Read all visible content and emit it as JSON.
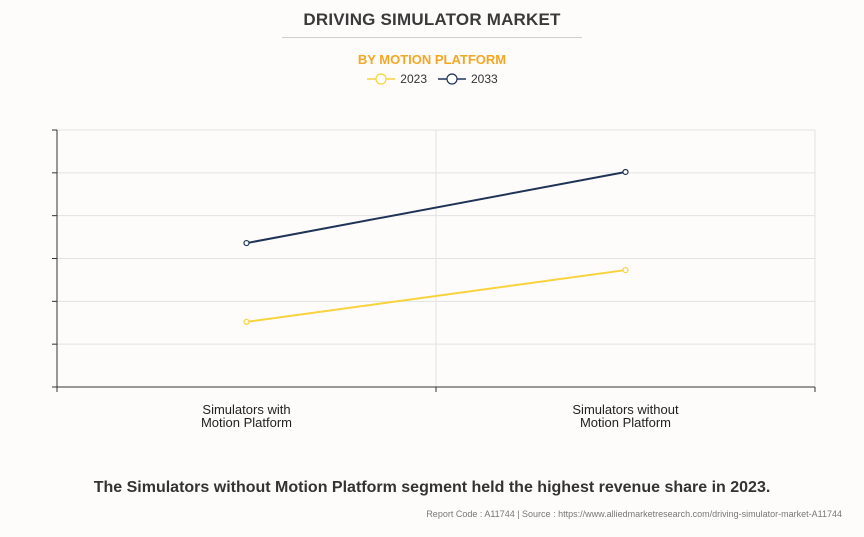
{
  "header": {
    "title": "DRIVING SIMULATOR MARKET",
    "subtitle": "BY MOTION PLATFORM"
  },
  "colors": {
    "series_2023": "#f9d23c",
    "series_2033": "#1f3357",
    "subtitle": "#f5a623"
  },
  "chart_data": {
    "type": "line",
    "title": "DRIVING SIMULATOR MARKET",
    "subtitle": "BY MOTION PLATFORM",
    "categories": [
      "Simulators with\nMotion Platform",
      "Simulators without\nMotion Platform"
    ],
    "category_lines": [
      [
        "Simulators with",
        "Motion Platform"
      ],
      [
        "Simulators without",
        "Motion Platform"
      ]
    ],
    "series": [
      {
        "name": "2023",
        "values": [
          1.52,
          2.73
        ]
      },
      {
        "name": "2033",
        "values": [
          3.36,
          5.02
        ]
      }
    ],
    "xlabel": "",
    "ylabel": "",
    "ylim": [
      0,
      6
    ],
    "yticks_count": 6,
    "y_tick_labels_visible": false,
    "grid": true,
    "legend": "top-center"
  },
  "footer": {
    "headline": "The Simulators without Motion Platform segment held the highest revenue share in 2023.",
    "source": "Report Code : A11744  |  Source : https://www.alliedmarketresearch.com/driving-simulator-market-A11744"
  }
}
